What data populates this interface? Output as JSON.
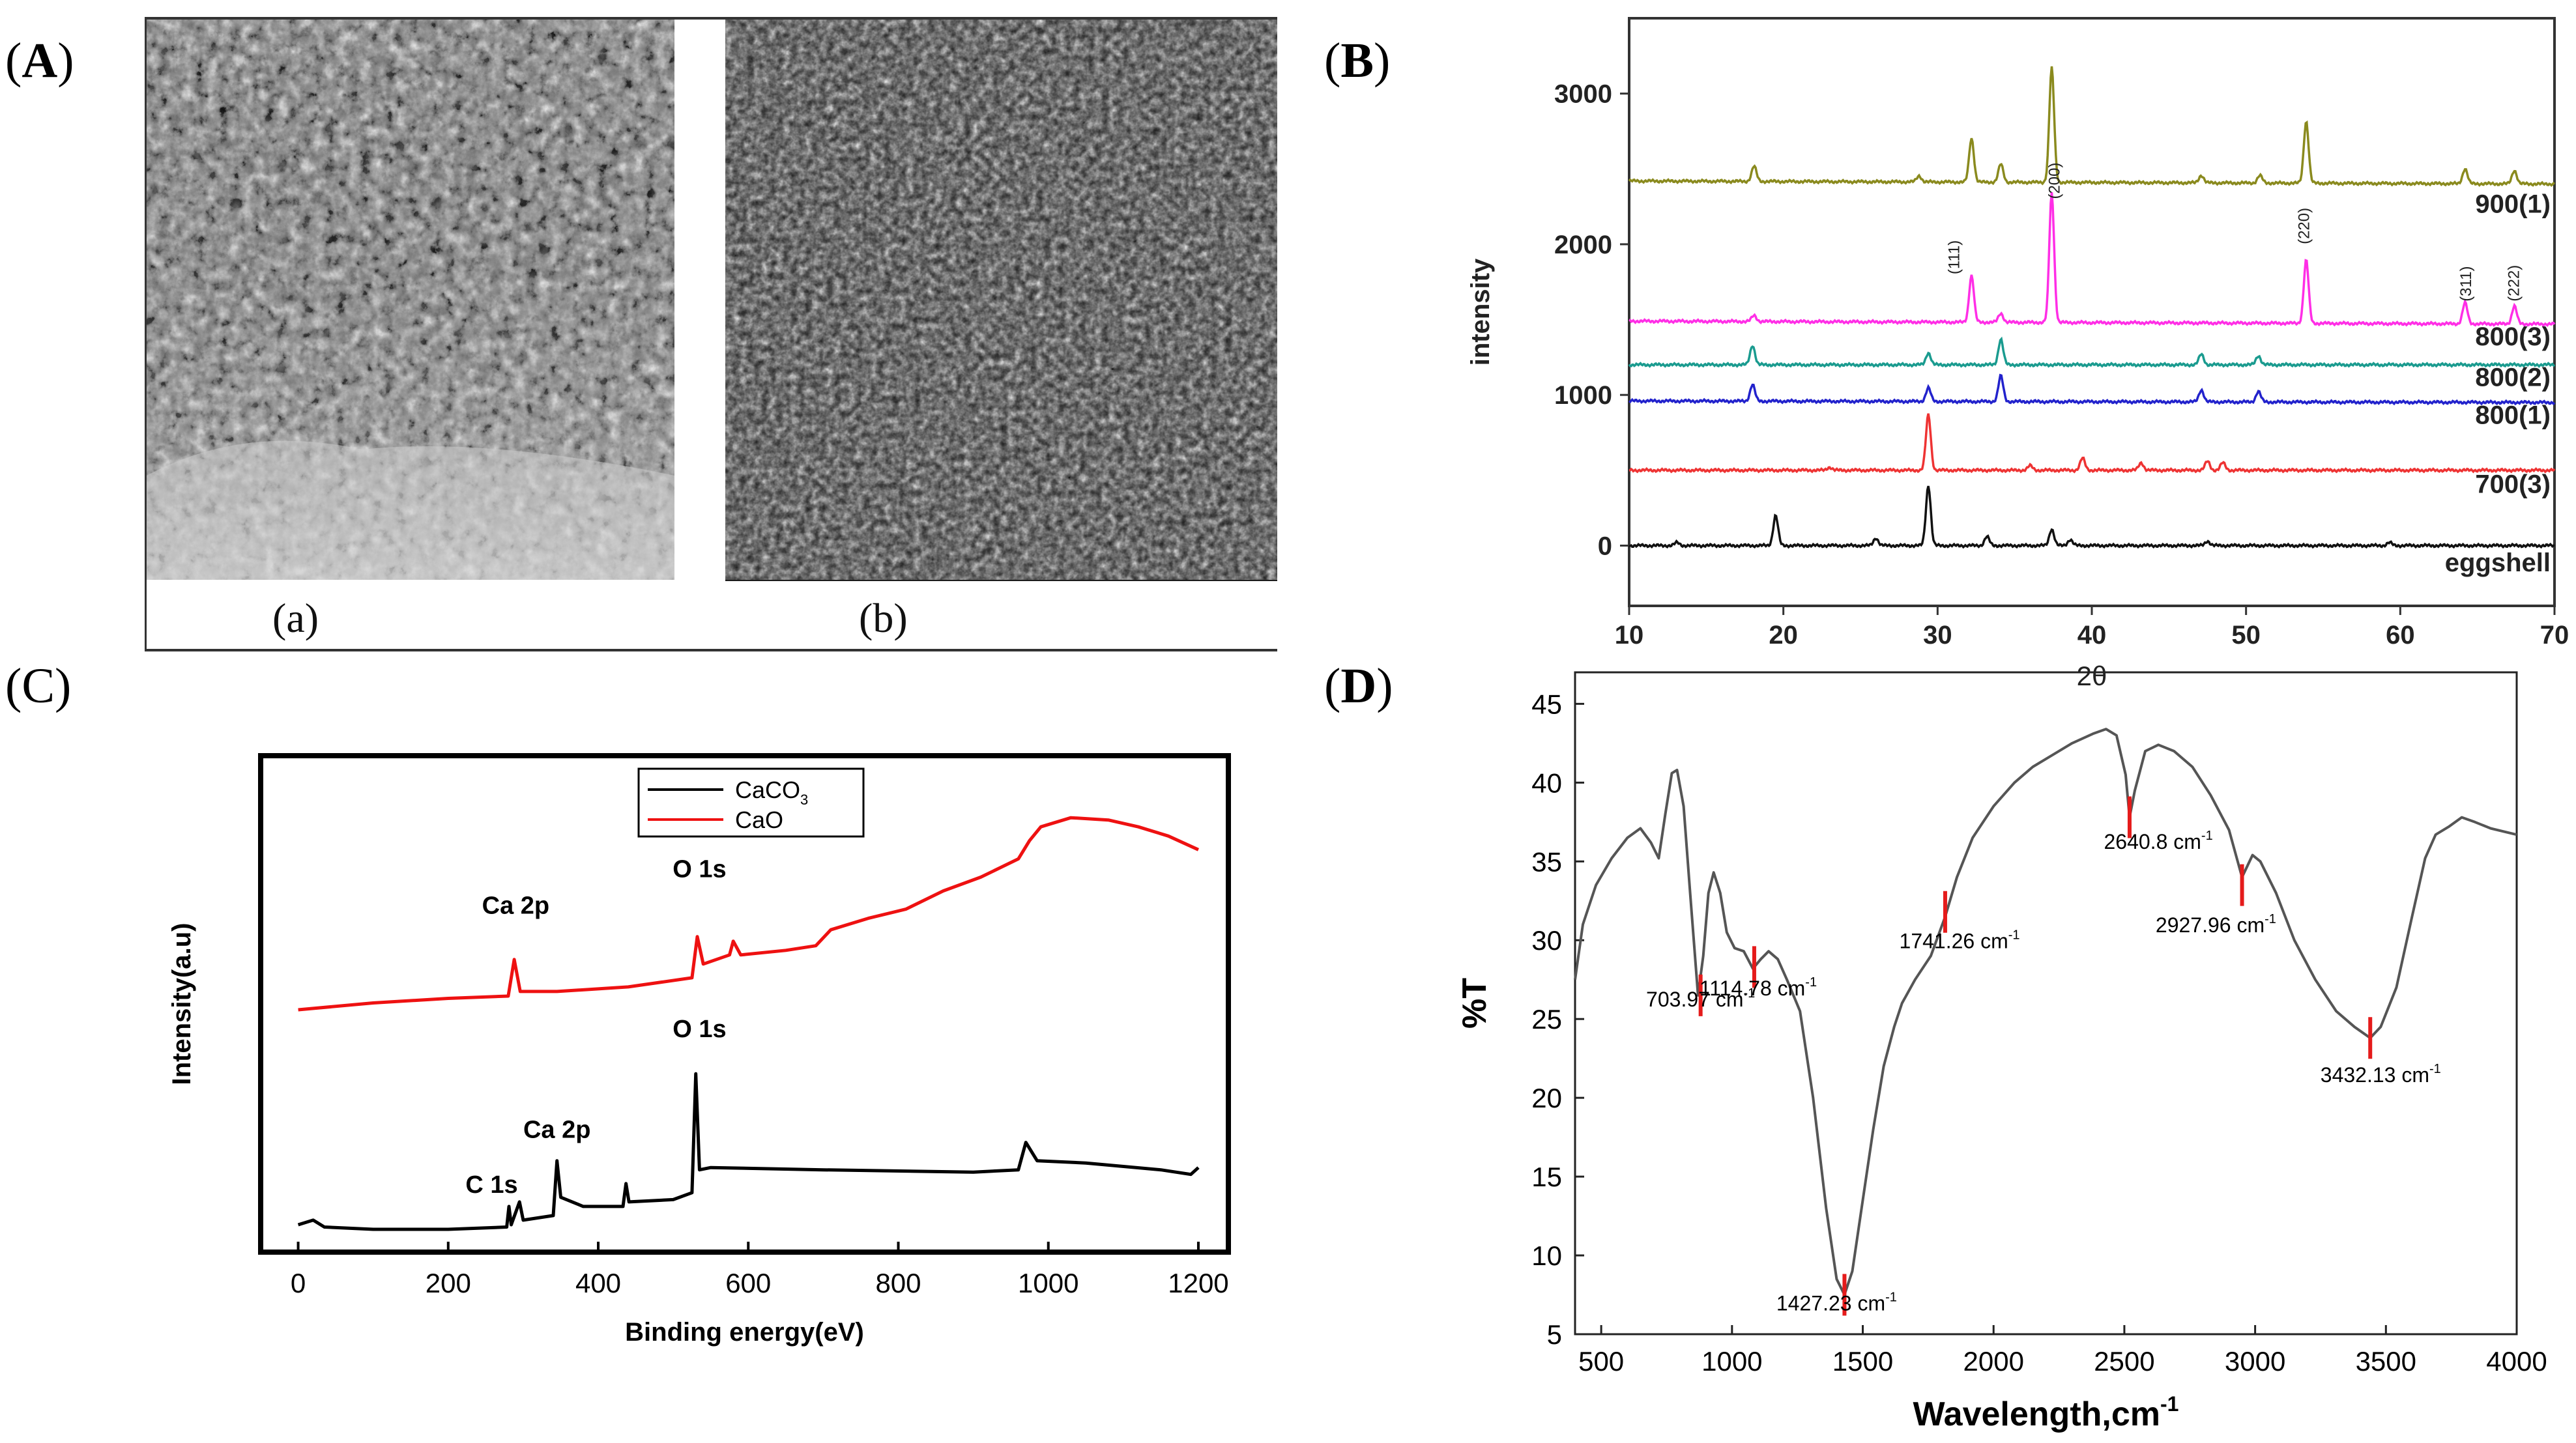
{
  "panels": {
    "A": {
      "letter": "A",
      "caption_a": "(a)",
      "caption_b": "(b)"
    },
    "B": {
      "letter": "B"
    },
    "C": {
      "letter": "C"
    },
    "D": {
      "letter": "D"
    }
  },
  "chart_data": [
    {
      "id": "xrd",
      "type": "line",
      "xlabel": "2θ",
      "ylabel": "intensity",
      "xlim": [
        10,
        70
      ],
      "ylim": [
        -400,
        3500
      ],
      "xticks": [
        10,
        20,
        30,
        40,
        50,
        60,
        70
      ],
      "yticks": [
        0,
        1000,
        2000,
        3000
      ],
      "peak_labels": [
        {
          "text": "(111)",
          "x": 31.4,
          "y": 1800
        },
        {
          "text": "(200)",
          "x": 37.9,
          "y": 2300
        },
        {
          "text": "(220)",
          "x": 54.1,
          "y": 2000
        },
        {
          "text": "(311)",
          "x": 64.6,
          "y": 1620
        },
        {
          "text": "(222)",
          "x": 67.7,
          "y": 1620
        }
      ],
      "series": [
        {
          "name": "900(1)",
          "color": "#8a8a1e",
          "baseline": 2420,
          "end": 2400,
          "label_y": 2270,
          "peaks": [
            [
              18.1,
              100
            ],
            [
              28.8,
              40
            ],
            [
              32.2,
              290
            ],
            [
              34.1,
              120
            ],
            [
              37.4,
              760
            ],
            [
              47.1,
              50
            ],
            [
              50.9,
              50
            ],
            [
              53.9,
              410
            ],
            [
              64.2,
              100
            ],
            [
              67.4,
              90
            ]
          ]
        },
        {
          "name": "800(3)",
          "color": "#ff2ee6",
          "baseline": 1490,
          "end": 1470,
          "label_y": 1390,
          "peaks": [
            [
              18.1,
              40
            ],
            [
              32.2,
              310
            ],
            [
              34.1,
              60
            ],
            [
              37.4,
              860
            ],
            [
              53.9,
              420
            ],
            [
              64.2,
              140
            ],
            [
              67.4,
              120
            ]
          ]
        },
        {
          "name": "800(2)",
          "color": "#1a9b8f",
          "baseline": 1200,
          "end": 1200,
          "label_y": 1120,
          "peaks": [
            [
              18.0,
              130
            ],
            [
              29.4,
              80
            ],
            [
              34.1,
              170
            ],
            [
              47.1,
              70
            ],
            [
              50.8,
              60
            ]
          ]
        },
        {
          "name": "800(1)",
          "color": "#2222cc",
          "baseline": 960,
          "end": 950,
          "label_y": 870,
          "peaks": [
            [
              18.0,
              110
            ],
            [
              29.4,
              90
            ],
            [
              34.1,
              170
            ],
            [
              47.1,
              80
            ],
            [
              50.8,
              70
            ]
          ]
        },
        {
          "name": "700(3)",
          "color": "#ee3333",
          "baseline": 500,
          "end": 500,
          "label_y": 410,
          "peaks": [
            [
              23.0,
              20
            ],
            [
              29.4,
              370
            ],
            [
              36.0,
              30
            ],
            [
              39.4,
              80
            ],
            [
              43.2,
              50
            ],
            [
              47.5,
              60
            ],
            [
              48.5,
              50
            ]
          ]
        },
        {
          "name": "eggshell",
          "color": "#111111",
          "baseline": 0,
          "end": 0,
          "label_y": -110,
          "peaks": [
            [
              13.1,
              20
            ],
            [
              19.5,
              200
            ],
            [
              26.0,
              50
            ],
            [
              29.4,
              400
            ],
            [
              33.2,
              60
            ],
            [
              37.4,
              110
            ],
            [
              38.6,
              40
            ],
            [
              47.5,
              30
            ],
            [
              59.3,
              20
            ]
          ]
        }
      ]
    },
    {
      "id": "xps",
      "type": "line",
      "xlabel": "Binding energy(eV)",
      "ylabel": "Intensity(a.u)",
      "xlim": [
        -50,
        1240
      ],
      "ylim": [
        0,
        100
      ],
      "xticks": [
        0,
        200,
        400,
        600,
        800,
        1000,
        1200
      ],
      "legend": [
        {
          "name": "CaCO",
          "sub": "3",
          "color": "#000000"
        },
        {
          "name": "CaO",
          "sub": "",
          "color": "#ee1111"
        }
      ],
      "annotations": [
        {
          "text": "Ca 2p",
          "x": 290,
          "y": 70
        },
        {
          "text": "O 1s",
          "x": 535,
          "y": 78
        },
        {
          "text": "O 1s",
          "x": 535,
          "y": 43
        },
        {
          "text": "Ca 2p",
          "x": 345,
          "y": 21
        },
        {
          "text": "C 1s",
          "x": 258,
          "y": 9
        }
      ],
      "series": [
        {
          "name": "CaO",
          "color": "#ee1111",
          "points": [
            [
              0,
              49
            ],
            [
              100,
              50.5
            ],
            [
              200,
              51.5
            ],
            [
              280,
              52
            ],
            [
              288,
              60
            ],
            [
              296,
              53
            ],
            [
              345,
              53
            ],
            [
              440,
              54
            ],
            [
              525,
              56
            ],
            [
              532,
              65
            ],
            [
              540,
              59
            ],
            [
              575,
              61
            ],
            [
              580,
              64
            ],
            [
              590,
              61
            ],
            [
              650,
              62
            ],
            [
              690,
              63
            ],
            [
              710,
              66.5
            ],
            [
              760,
              69
            ],
            [
              810,
              71
            ],
            [
              860,
              75
            ],
            [
              910,
              78
            ],
            [
              960,
              82
            ],
            [
              975,
              86
            ],
            [
              990,
              89
            ],
            [
              1030,
              91
            ],
            [
              1080,
              90.5
            ],
            [
              1120,
              89
            ],
            [
              1160,
              87
            ],
            [
              1200,
              84
            ]
          ]
        },
        {
          "name": "CaCO3",
          "color": "#000000",
          "points": [
            [
              0,
              2
            ],
            [
              20,
              3
            ],
            [
              35,
              1.5
            ],
            [
              100,
              1
            ],
            [
              200,
              1
            ],
            [
              278,
              1.5
            ],
            [
              281,
              6
            ],
            [
              284,
              2
            ],
            [
              295,
              7
            ],
            [
              300,
              3
            ],
            [
              340,
              4
            ],
            [
              345,
              16
            ],
            [
              350,
              8
            ],
            [
              380,
              6
            ],
            [
              433,
              6
            ],
            [
              437,
              11
            ],
            [
              441,
              7
            ],
            [
              500,
              7.5
            ],
            [
              525,
              9
            ],
            [
              530,
              35
            ],
            [
              535,
              14
            ],
            [
              550,
              14.5
            ],
            [
              700,
              14
            ],
            [
              900,
              13.5
            ],
            [
              960,
              14
            ],
            [
              970,
              20
            ],
            [
              985,
              16
            ],
            [
              1050,
              15.5
            ],
            [
              1150,
              14
            ],
            [
              1190,
              13
            ],
            [
              1200,
              14.5
            ]
          ]
        }
      ]
    },
    {
      "id": "ftir",
      "type": "line",
      "xlabel": "Wavelength,cm",
      "xlabel_sup": "-1",
      "ylabel": "%T",
      "xlim": [
        400,
        4000
      ],
      "ylim": [
        5,
        47
      ],
      "xticks": [
        500,
        1000,
        1500,
        2000,
        2500,
        3000,
        3500,
        4000
      ],
      "yticks": [
        5,
        10,
        15,
        20,
        25,
        30,
        35,
        40,
        45
      ],
      "annotations": [
        {
          "text": "703.97 cm",
          "x": 880,
          "y": 25.8
        },
        {
          "text": "1114.78 cm",
          "x": 1100,
          "y": 26.5
        },
        {
          "text": "1427.23 cm",
          "x": 1400,
          "y": 6.5
        },
        {
          "text": "1741.26 cm",
          "x": 1870,
          "y": 29.5
        },
        {
          "text": "2640.8 cm",
          "x": 2630,
          "y": 35.8
        },
        {
          "text": "2927.96 cm",
          "x": 2850,
          "y": 30.5
        },
        {
          "text": "3432.13 cm",
          "x": 3480,
          "y": 21.0
        }
      ],
      "markers": [
        {
          "x": 880,
          "y": 26.5
        },
        {
          "x": 1085,
          "y": 28.3
        },
        {
          "x": 1430,
          "y": 7.5
        },
        {
          "x": 1815,
          "y": 31.8
        },
        {
          "x": 2520,
          "y": 37.8
        },
        {
          "x": 2950,
          "y": 33.5
        },
        {
          "x": 3440,
          "y": 23.8
        }
      ],
      "points": [
        [
          400,
          27.5
        ],
        [
          430,
          31
        ],
        [
          480,
          33.5
        ],
        [
          540,
          35.2
        ],
        [
          600,
          36.5
        ],
        [
          650,
          37.1
        ],
        [
          690,
          36.2
        ],
        [
          720,
          35.2
        ],
        [
          745,
          38
        ],
        [
          770,
          40.6
        ],
        [
          790,
          40.8
        ],
        [
          815,
          38.5
        ],
        [
          840,
          33
        ],
        [
          870,
          26.5
        ],
        [
          890,
          29
        ],
        [
          910,
          33
        ],
        [
          930,
          34.3
        ],
        [
          955,
          33
        ],
        [
          980,
          30.5
        ],
        [
          1010,
          29.5
        ],
        [
          1045,
          29.3
        ],
        [
          1080,
          28.2
        ],
        [
          1110,
          28.8
        ],
        [
          1140,
          29.3
        ],
        [
          1175,
          28.8
        ],
        [
          1210,
          27.5
        ],
        [
          1260,
          25.5
        ],
        [
          1310,
          20
        ],
        [
          1360,
          13
        ],
        [
          1400,
          8.5
        ],
        [
          1430,
          7.5
        ],
        [
          1460,
          9
        ],
        [
          1500,
          13.5
        ],
        [
          1540,
          18
        ],
        [
          1580,
          22
        ],
        [
          1620,
          24.5
        ],
        [
          1650,
          26
        ],
        [
          1700,
          27.5
        ],
        [
          1760,
          29
        ],
        [
          1815,
          31.5
        ],
        [
          1860,
          34
        ],
        [
          1920,
          36.5
        ],
        [
          2000,
          38.5
        ],
        [
          2080,
          40
        ],
        [
          2150,
          41
        ],
        [
          2230,
          41.8
        ],
        [
          2300,
          42.5
        ],
        [
          2380,
          43.1
        ],
        [
          2430,
          43.4
        ],
        [
          2470,
          43
        ],
        [
          2505,
          40.5
        ],
        [
          2520,
          37.8
        ],
        [
          2540,
          39.5
        ],
        [
          2580,
          42
        ],
        [
          2630,
          42.4
        ],
        [
          2690,
          42
        ],
        [
          2760,
          41
        ],
        [
          2830,
          39.2
        ],
        [
          2900,
          37
        ],
        [
          2950,
          34
        ],
        [
          2990,
          35.4
        ],
        [
          3020,
          35
        ],
        [
          3080,
          33
        ],
        [
          3150,
          30
        ],
        [
          3230,
          27.5
        ],
        [
          3310,
          25.5
        ],
        [
          3380,
          24.5
        ],
        [
          3440,
          23.8
        ],
        [
          3480,
          24.5
        ],
        [
          3540,
          27
        ],
        [
          3600,
          31.5
        ],
        [
          3650,
          35.2
        ],
        [
          3690,
          36.7
        ],
        [
          3740,
          37.2
        ],
        [
          3790,
          37.8
        ],
        [
          3840,
          37.5
        ],
        [
          3900,
          37.1
        ],
        [
          4000,
          36.7
        ]
      ]
    }
  ]
}
